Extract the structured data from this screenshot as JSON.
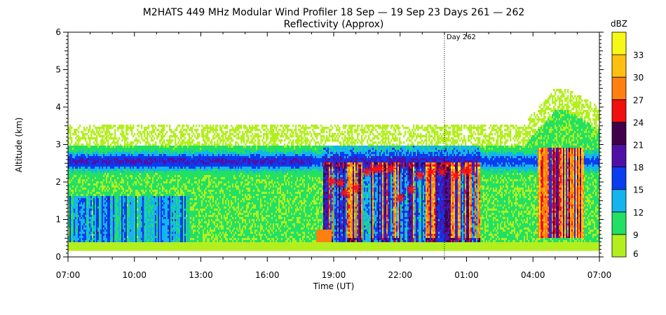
{
  "chart_data": {
    "type": "heatmap",
    "title": "M2HATS 449 MHz Modular Wind Profiler   18 Sep — 19 Sep 23 Days 261 — 262",
    "subtitle": "Reflectivity (Approx)",
    "xlabel": "Time (UT)",
    "ylabel": "Altitude (km)",
    "x_tick_labels": [
      "07:00",
      "10:00",
      "13:00",
      "16:00",
      "19:00",
      "22:00",
      "01:00",
      "04:00",
      "07:00"
    ],
    "x_range_hours": [
      7,
      31
    ],
    "y_ticks": [
      0,
      1,
      2,
      3,
      4,
      5,
      6
    ],
    "ylim": [
      0,
      6
    ],
    "annotation": {
      "label": "Day 262",
      "x_hours": 24
    },
    "colorbar": {
      "unit": "dBZ",
      "levels": [
        6,
        9,
        12,
        15,
        18,
        21,
        24,
        27,
        30,
        33
      ],
      "colors": [
        "#b3ef1f",
        "#22e064",
        "#14b4ee",
        "#0a3cf0",
        "#5010a8",
        "#40004a",
        "#f01010",
        "#ff8010",
        "#ffc010",
        "#f8f816"
      ]
    },
    "markers": {
      "symbol": "asterisk",
      "color": "#ff1010",
      "points": [
        {
          "x": 18.9,
          "y": 2.02
        },
        {
          "x": 19.3,
          "y": 1.98
        },
        {
          "x": 19.5,
          "y": 1.72
        },
        {
          "x": 20.0,
          "y": 1.85
        },
        {
          "x": 20.5,
          "y": 2.27
        },
        {
          "x": 20.8,
          "y": 2.33
        },
        {
          "x": 21.1,
          "y": 2.36
        },
        {
          "x": 21.6,
          "y": 2.36
        },
        {
          "x": 22.0,
          "y": 1.58
        },
        {
          "x": 22.5,
          "y": 1.8
        },
        {
          "x": 22.9,
          "y": 2.18
        },
        {
          "x": 23.4,
          "y": 2.27
        },
        {
          "x": 23.9,
          "y": 2.27
        },
        {
          "x": 24.5,
          "y": 2.18
        },
        {
          "x": 24.9,
          "y": 2.3
        },
        {
          "x": 25.1,
          "y": 2.3
        }
      ]
    }
  }
}
